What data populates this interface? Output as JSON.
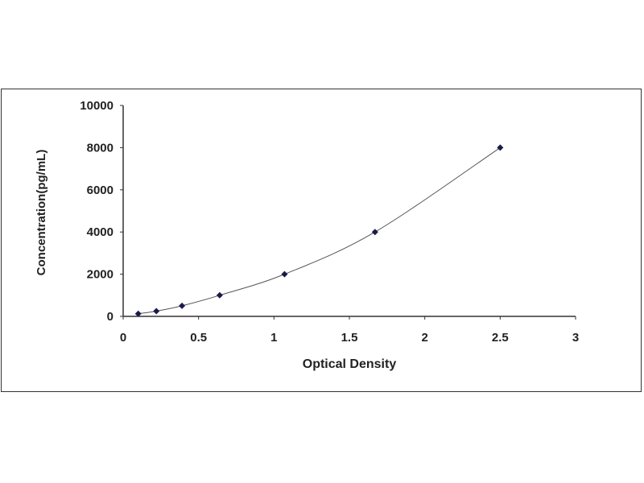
{
  "chart_data": {
    "type": "scatter",
    "title": "",
    "xlabel": "Optical Density",
    "ylabel": "Concentration(pg/mL)",
    "xlim": [
      0,
      3
    ],
    "ylim": [
      0,
      10000
    ],
    "xticks": [
      "0",
      "0.5",
      "1",
      "1.5",
      "2",
      "2.5",
      "3"
    ],
    "yticks": [
      "0",
      "2000",
      "4000",
      "6000",
      "8000",
      "10000"
    ],
    "grid": false,
    "series": [
      {
        "x": [
          0.1,
          0.22,
          0.39,
          0.64,
          1.07,
          1.67,
          2.5
        ],
        "y": [
          125,
          250,
          500,
          1000,
          2000,
          4000,
          8000
        ],
        "marker": "diamond",
        "fit_curve": true
      }
    ],
    "colors": {
      "marker": "#1a1a4a",
      "curve": "#555555"
    }
  }
}
